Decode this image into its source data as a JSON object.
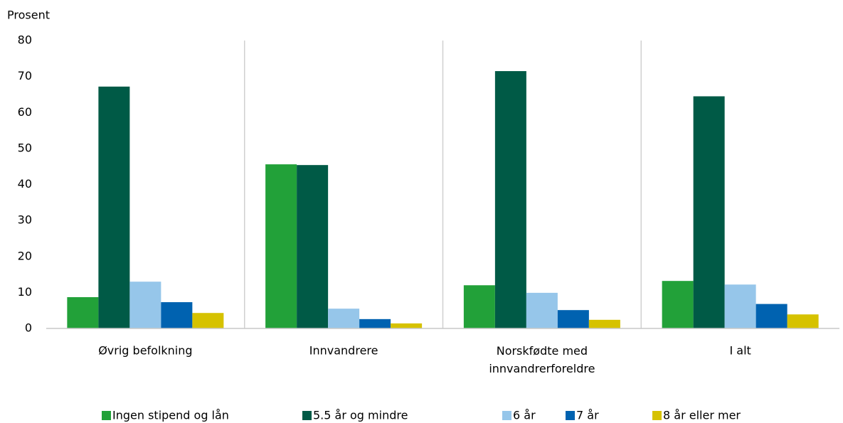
{
  "chart_data": {
    "type": "bar",
    "y_label": "Prosent",
    "categories": [
      "Øvrig befolkning",
      "Innvandrere",
      "Norskfødte med innvandrerforeldre",
      "I alt"
    ],
    "series": [
      {
        "name": "Ingen stipend og lån",
        "color": "#22a139",
        "values": [
          8.7,
          45.6,
          12.0,
          13.2
        ]
      },
      {
        "name": "5.5 år og mindre",
        "color": "#005a46",
        "values": [
          67.2,
          45.4,
          71.5,
          64.5
        ]
      },
      {
        "name": "6 år",
        "color": "#96c6ea",
        "values": [
          13.0,
          5.5,
          9.9,
          12.2
        ]
      },
      {
        "name": "7 år",
        "color": "#0062b0",
        "values": [
          7.3,
          2.6,
          5.1,
          6.8
        ]
      },
      {
        "name": "8 år eller mer",
        "color": "#d6c200",
        "values": [
          4.3,
          1.4,
          2.4,
          3.9
        ]
      }
    ],
    "ylim": [
      0,
      80
    ],
    "yticks": [
      0,
      10,
      20,
      30,
      40,
      50,
      60,
      70,
      80
    ],
    "legend": "bottom"
  }
}
